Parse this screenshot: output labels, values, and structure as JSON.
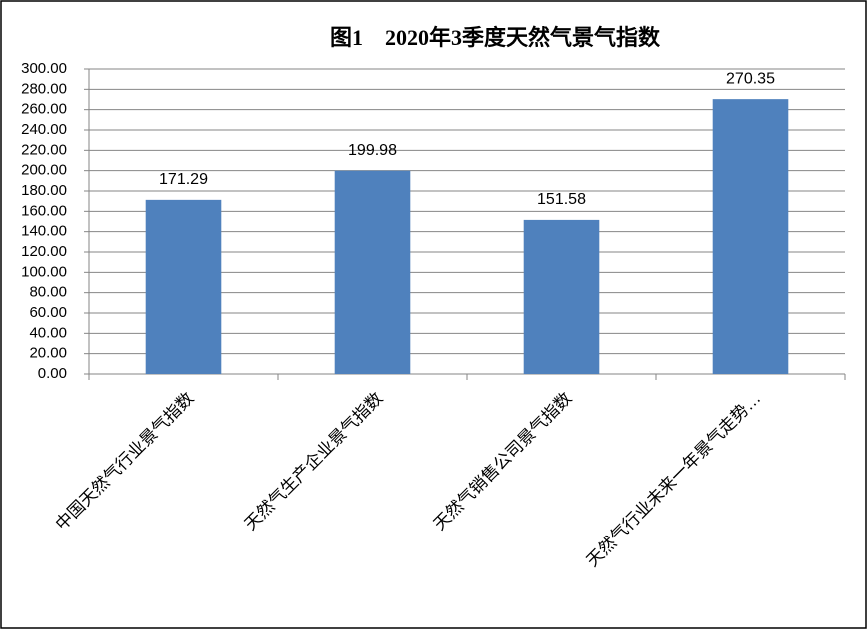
{
  "chart_data": {
    "type": "bar",
    "title": "图1　2020年3季度天然气景气指数",
    "categories": [
      "中国天然气行业景气指数",
      "天然气生产企业景气指数",
      "天然气销售公司景气指数",
      "天然气行业未来一年景气走势…"
    ],
    "values": [
      171.29,
      199.98,
      151.58,
      270.35
    ],
    "color": "#4f81bd",
    "ylim": [
      0,
      300
    ],
    "yticks": [
      {
        "value": 0,
        "label": "0.00"
      },
      {
        "value": 20,
        "label": "20.00"
      },
      {
        "value": 40,
        "label": "40.00"
      },
      {
        "value": 60,
        "label": "60.00"
      },
      {
        "value": 80,
        "label": "80.00"
      },
      {
        "value": 100,
        "label": "100.00"
      },
      {
        "value": 120,
        "label": "120.00"
      },
      {
        "value": 140,
        "label": "140.00"
      },
      {
        "value": 160,
        "label": "160.00"
      },
      {
        "value": 180,
        "label": "180.00"
      },
      {
        "value": 200,
        "label": "200.00"
      },
      {
        "value": 220,
        "label": "220.00"
      },
      {
        "value": 240,
        "label": "240.00"
      },
      {
        "value": 260,
        "label": "260.00"
      },
      {
        "value": 280,
        "label": "280.00"
      },
      {
        "value": 300,
        "label": "300.00"
      }
    ],
    "grid": true
  }
}
